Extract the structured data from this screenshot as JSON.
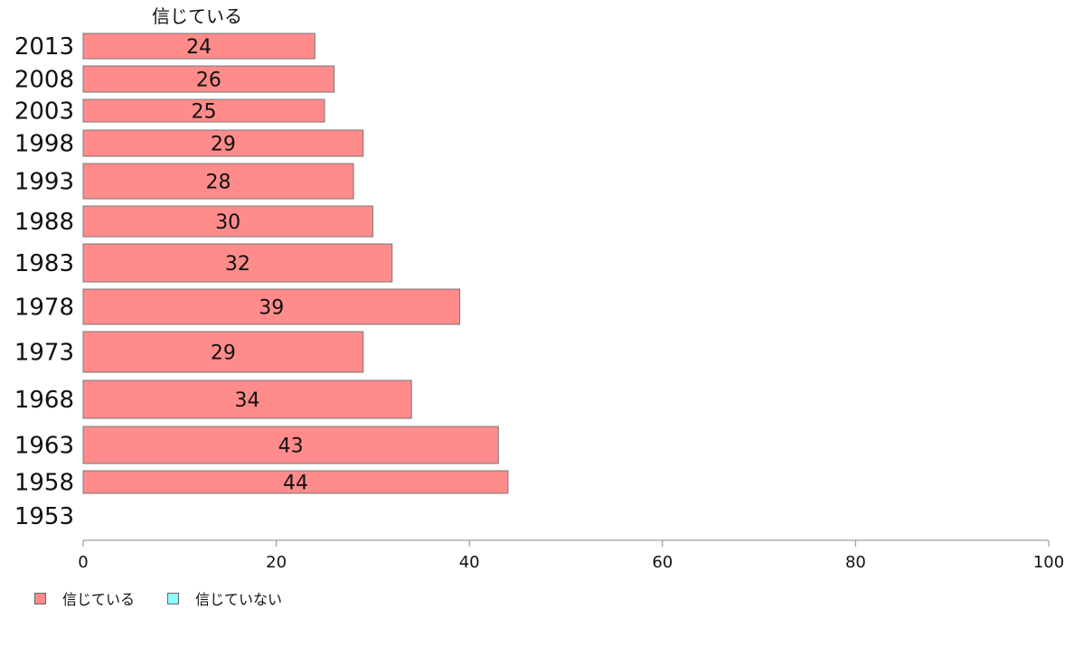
{
  "chart_data": {
    "type": "bar",
    "orientation": "horizontal",
    "title": "信じている",
    "categories": [
      "2013",
      "2008",
      "2003",
      "1998",
      "1993",
      "1988",
      "1983",
      "1978",
      "1973",
      "1968",
      "1963",
      "1958",
      "1953"
    ],
    "series": [
      {
        "name": "信じている",
        "color": "#ff8b8b",
        "values": [
          24,
          26,
          25,
          29,
          28,
          30,
          32,
          39,
          29,
          34,
          43,
          44,
          null
        ]
      },
      {
        "name": "信じていない",
        "color": "#8bffff",
        "values": [
          null,
          null,
          null,
          null,
          null,
          null,
          null,
          null,
          null,
          null,
          null,
          null,
          null
        ]
      }
    ],
    "xlim": [
      0,
      100
    ],
    "xticks": [
      "0",
      "20",
      "40",
      "60",
      "80",
      "100"
    ],
    "grid": false,
    "legend_position": "bottom-left"
  }
}
